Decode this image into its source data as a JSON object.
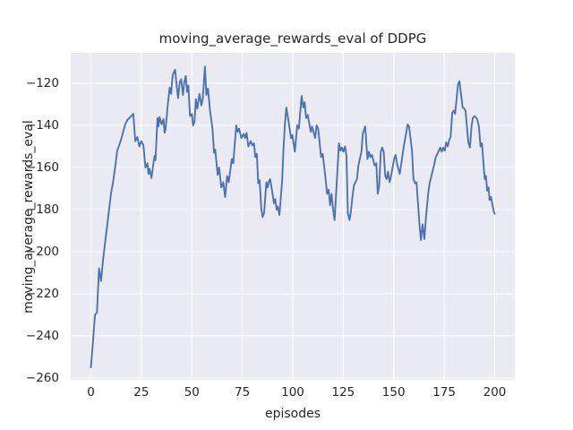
{
  "figure": {
    "title": "moving_average_rewards_eval of DDPG",
    "xlabel": "episodes",
    "ylabel": "moving_average_rewards_eval"
  },
  "chart_data": {
    "type": "line",
    "title": "moving_average_rewards_eval of DDPG",
    "xlabel": "episodes",
    "ylabel": "moving_average_rewards_eval",
    "x_ticks": [
      0,
      25,
      50,
      75,
      100,
      125,
      150,
      175,
      200
    ],
    "y_ticks": [
      -260,
      -240,
      -220,
      -200,
      -180,
      -160,
      -140,
      -120
    ],
    "xlim": [
      -10,
      210
    ],
    "ylim": [
      -260.9,
      -105.5
    ],
    "grid": true,
    "legend_position": "none",
    "style": "seaborn-darkgrid",
    "axes_background": "#eaeaf2",
    "grid_color": "#ffffff",
    "line_color": "#4c72b0",
    "text_color": "#262626",
    "series": [
      {
        "name": "moving_average_rewards_eval",
        "points": [
          [
            0,
            -255
          ],
          [
            1,
            -243
          ],
          [
            2,
            -230
          ],
          [
            3,
            -229
          ],
          [
            4,
            -208
          ],
          [
            5,
            -214
          ],
          [
            6,
            -204
          ],
          [
            7,
            -196
          ],
          [
            8,
            -188
          ],
          [
            9,
            -180
          ],
          [
            10,
            -172
          ],
          [
            11,
            -167
          ],
          [
            12,
            -160
          ],
          [
            13,
            -152
          ],
          [
            14,
            -149.5
          ],
          [
            15,
            -146.5
          ],
          [
            16,
            -143
          ],
          [
            17,
            -139.5
          ],
          [
            18,
            -137.5
          ],
          [
            19,
            -136.5
          ],
          [
            20,
            -135.5
          ],
          [
            21,
            -134.5
          ],
          [
            22,
            -147.5
          ],
          [
            23,
            -145.5
          ],
          [
            24,
            -150
          ],
          [
            25,
            -147.5
          ],
          [
            26,
            -149.5
          ],
          [
            27,
            -160
          ],
          [
            28,
            -158
          ],
          [
            28.5,
            -163
          ],
          [
            29,
            -160.5
          ],
          [
            30,
            -165
          ],
          [
            31,
            -158
          ],
          [
            31.5,
            -154.5
          ],
          [
            32,
            -156.5
          ],
          [
            33,
            -136.5
          ],
          [
            33.5,
            -140.5
          ],
          [
            34,
            -136
          ],
          [
            35,
            -139.5
          ],
          [
            36,
            -137
          ],
          [
            36.5,
            -143.5
          ],
          [
            37,
            -141.5
          ],
          [
            38,
            -131
          ],
          [
            39,
            -122
          ],
          [
            39.7,
            -125
          ],
          [
            40.5,
            -116
          ],
          [
            41.7,
            -113.5
          ],
          [
            42.5,
            -121.5
          ],
          [
            43.2,
            -127
          ],
          [
            44,
            -119.5
          ],
          [
            44.7,
            -118
          ],
          [
            45.6,
            -125.5
          ],
          [
            46.3,
            -119
          ],
          [
            47,
            -116.5
          ],
          [
            47.6,
            -124
          ],
          [
            48.3,
            -121
          ],
          [
            49.1,
            -135.5
          ],
          [
            50,
            -134.5
          ],
          [
            50.6,
            -140
          ],
          [
            51.3,
            -138.5
          ],
          [
            52,
            -127.5
          ],
          [
            52.7,
            -132
          ],
          [
            53.8,
            -125
          ],
          [
            54.7,
            -130.5
          ],
          [
            55.4,
            -127.5
          ],
          [
            56.5,
            -112
          ],
          [
            57.2,
            -125.5
          ],
          [
            58,
            -122.5
          ],
          [
            59,
            -133
          ],
          [
            60.2,
            -141.5
          ],
          [
            61,
            -153
          ],
          [
            61.6,
            -151.5
          ],
          [
            62.8,
            -163.5
          ],
          [
            63.5,
            -160
          ],
          [
            64.6,
            -169.5
          ],
          [
            65.6,
            -167
          ],
          [
            66.5,
            -174
          ],
          [
            67.5,
            -164
          ],
          [
            68.3,
            -167
          ],
          [
            69.8,
            -156
          ],
          [
            70.5,
            -158
          ],
          [
            72,
            -140
          ],
          [
            72.7,
            -143
          ],
          [
            73.4,
            -141.5
          ],
          [
            74.6,
            -146
          ],
          [
            75.7,
            -144
          ],
          [
            76.4,
            -146
          ],
          [
            77.1,
            -143.5
          ],
          [
            78,
            -150
          ],
          [
            79.2,
            -147.5
          ],
          [
            80,
            -149.5
          ],
          [
            80.8,
            -148.5
          ],
          [
            81.4,
            -155
          ],
          [
            82.2,
            -153.5
          ],
          [
            82.9,
            -167.5
          ],
          [
            83.6,
            -166
          ],
          [
            84.4,
            -179.5
          ],
          [
            85.1,
            -183.5
          ],
          [
            85.8,
            -181.5
          ],
          [
            86.9,
            -167
          ],
          [
            87.6,
            -169.5
          ],
          [
            88.2,
            -166.5
          ],
          [
            88.8,
            -165.5
          ],
          [
            89.5,
            -169.5
          ],
          [
            90.7,
            -177
          ],
          [
            91.3,
            -175
          ],
          [
            92,
            -180
          ],
          [
            92.6,
            -178.5
          ],
          [
            93.4,
            -182.5
          ],
          [
            94.7,
            -166.5
          ],
          [
            95.4,
            -151.5
          ],
          [
            96.2,
            -138.5
          ],
          [
            96.8,
            -131.5
          ],
          [
            97.9,
            -138
          ],
          [
            99.1,
            -146
          ],
          [
            99.8,
            -144.5
          ],
          [
            101,
            -152.5
          ],
          [
            102.2,
            -140
          ],
          [
            103,
            -141.5
          ],
          [
            104.4,
            -126
          ],
          [
            105.2,
            -131.5
          ],
          [
            105.9,
            -129
          ],
          [
            106.6,
            -136.5
          ],
          [
            107.4,
            -135
          ],
          [
            108.9,
            -143
          ],
          [
            109.6,
            -140.5
          ],
          [
            111.1,
            -146
          ],
          [
            111.8,
            -140
          ],
          [
            112.6,
            -141.5
          ],
          [
            114,
            -155
          ],
          [
            114.8,
            -153.5
          ],
          [
            116.3,
            -165.5
          ],
          [
            117,
            -172.5
          ],
          [
            117.8,
            -170.5
          ],
          [
            118.5,
            -178
          ],
          [
            119.2,
            -172.5
          ],
          [
            120,
            -180
          ],
          [
            120.7,
            -185
          ],
          [
            121.4,
            -174
          ],
          [
            122.9,
            -148.5
          ],
          [
            123.7,
            -152
          ],
          [
            124.4,
            -150.5
          ],
          [
            125.1,
            -152.5
          ],
          [
            125.9,
            -150
          ],
          [
            126.6,
            -154.5
          ],
          [
            127.3,
            -181.5
          ],
          [
            128.1,
            -185
          ],
          [
            128.8,
            -181
          ],
          [
            129.5,
            -174.5
          ],
          [
            130.3,
            -168.5
          ],
          [
            131.8,
            -165.5
          ],
          [
            132.5,
            -159
          ],
          [
            134,
            -152.5
          ],
          [
            134.7,
            -144
          ],
          [
            135.9,
            -140.5
          ],
          [
            137,
            -156
          ],
          [
            137.7,
            -152.5
          ],
          [
            138.4,
            -155
          ],
          [
            139.2,
            -154
          ],
          [
            140.6,
            -159
          ],
          [
            141.4,
            -158
          ],
          [
            142.1,
            -172.5
          ],
          [
            142.8,
            -169
          ],
          [
            143.6,
            -152.5
          ],
          [
            144.3,
            -150.5
          ],
          [
            145,
            -152.5
          ],
          [
            145.8,
            -164
          ],
          [
            146.5,
            -165.5
          ],
          [
            147.2,
            -162
          ],
          [
            148,
            -167
          ],
          [
            148.7,
            -164
          ],
          [
            150.2,
            -156
          ],
          [
            150.9,
            -154
          ],
          [
            151.7,
            -158.5
          ],
          [
            153,
            -163
          ],
          [
            155,
            -150
          ],
          [
            156.9,
            -139.5
          ],
          [
            157.6,
            -140.5
          ],
          [
            159.1,
            -152
          ],
          [
            159.8,
            -165.5
          ],
          [
            160.6,
            -167.5
          ],
          [
            161.3,
            -167
          ],
          [
            162.8,
            -187.5
          ],
          [
            163.5,
            -194.5
          ],
          [
            164.3,
            -187
          ],
          [
            165.2,
            -194
          ],
          [
            166,
            -183.5
          ],
          [
            167.2,
            -171.5
          ],
          [
            167.9,
            -167
          ],
          [
            168.7,
            -164
          ],
          [
            170.1,
            -158.5
          ],
          [
            170.9,
            -155
          ],
          [
            172.4,
            -152
          ],
          [
            173.1,
            -150.5
          ],
          [
            173.8,
            -152.5
          ],
          [
            174.6,
            -150.5
          ],
          [
            175.3,
            -152
          ],
          [
            176,
            -148
          ],
          [
            176.8,
            -150
          ],
          [
            177.5,
            -147
          ],
          [
            178.2,
            -145.5
          ],
          [
            179,
            -134
          ],
          [
            179.7,
            -133
          ],
          [
            180.4,
            -134.5
          ],
          [
            181.9,
            -120.5
          ],
          [
            182.6,
            -119
          ],
          [
            183.4,
            -125.5
          ],
          [
            184.2,
            -131.5
          ],
          [
            185,
            -132
          ],
          [
            185.6,
            -133
          ],
          [
            186.4,
            -142
          ],
          [
            187,
            -148
          ],
          [
            187.8,
            -150.5
          ],
          [
            188.5,
            -141
          ],
          [
            189.2,
            -136.5
          ],
          [
            190,
            -135.5
          ],
          [
            191,
            -136.5
          ],
          [
            191.5,
            -137.5
          ],
          [
            192.2,
            -140.5
          ],
          [
            193,
            -150
          ],
          [
            193.7,
            -148.5
          ],
          [
            194.4,
            -157
          ],
          [
            195.1,
            -165.5
          ],
          [
            195.7,
            -164
          ],
          [
            196.3,
            -171
          ],
          [
            197,
            -169.5
          ],
          [
            197.5,
            -175.5
          ],
          [
            198.2,
            -174
          ],
          [
            199,
            -178
          ],
          [
            199.6,
            -181
          ],
          [
            200,
            -182
          ]
        ]
      }
    ]
  }
}
